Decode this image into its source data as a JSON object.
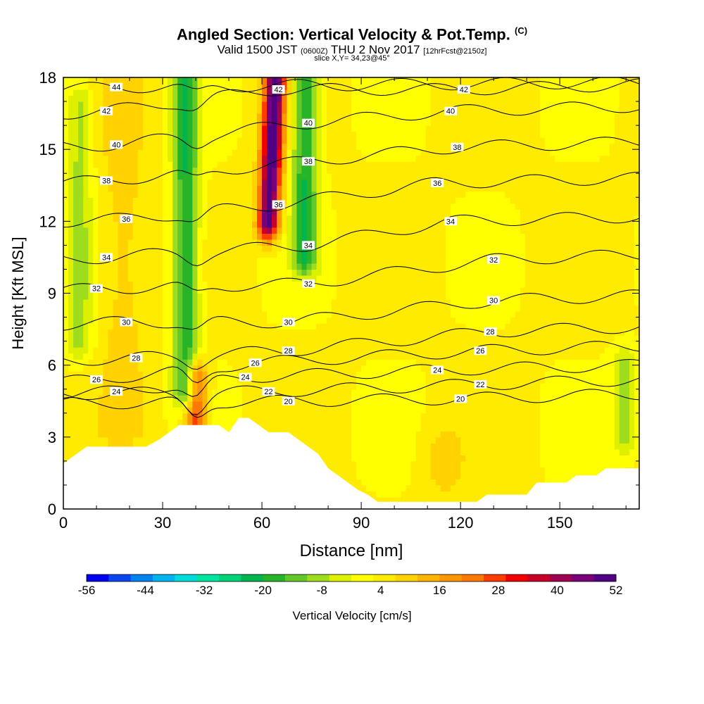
{
  "header": {
    "title_main": "Angled Section: Vertical Velocity & Pot.Temp.",
    "title_unit": "(C)",
    "valid_main": "Valid 1500 JST",
    "valid_utc": "(0600Z)",
    "valid_date": "THU 2 Nov 2017",
    "valid_run": "[12hrFcst@2150z]",
    "slice": "slice X,Y= 34,23@45°"
  },
  "chart_data": {
    "type": "heatmap",
    "xlabel": "Distance [nm]",
    "ylabel": "Height [Kft MSL]",
    "xlim": [
      0,
      174
    ],
    "ylim": [
      0,
      18
    ],
    "x_ticks": [
      0,
      30,
      60,
      90,
      120,
      150
    ],
    "y_ticks": [
      0,
      3,
      6,
      9,
      12,
      15,
      18
    ],
    "colorbar": {
      "label": "Vertical Velocity [cm/s]",
      "tick_labels": [
        "-56",
        "-44",
        "-32",
        "-20",
        "-8",
        "4",
        "16",
        "28",
        "40",
        "52"
      ],
      "colors": [
        "#0000f0",
        "#0a46f0",
        "#0082f0",
        "#00b4f0",
        "#00dcdc",
        "#00e6a0",
        "#00d278",
        "#00b450",
        "#28b428",
        "#64c828",
        "#a0dc1e",
        "#dcf000",
        "#ffff00",
        "#ffeb00",
        "#ffd200",
        "#ffb400",
        "#ff9600",
        "#ff7800",
        "#ff3c00",
        "#f00000",
        "#c80028",
        "#a00050",
        "#780078",
        "#500082"
      ]
    },
    "theta_contours": [
      {
        "value": 20,
        "label_points": [
          [
            68,
            4.5
          ],
          [
            120,
            4.6
          ]
        ]
      },
      {
        "value": 22,
        "label_points": [
          [
            62,
            4.9
          ],
          [
            126,
            5.2
          ]
        ]
      },
      {
        "value": 24,
        "label_points": [
          [
            16,
            4.9
          ],
          [
            55,
            5.5
          ],
          [
            113,
            5.8
          ]
        ]
      },
      {
        "value": 26,
        "label_points": [
          [
            10,
            5.4
          ],
          [
            58,
            6.1
          ],
          [
            126,
            6.6
          ]
        ]
      },
      {
        "value": 28,
        "label_points": [
          [
            22,
            6.3
          ],
          [
            68,
            6.6
          ],
          [
            129,
            7.4
          ]
        ]
      },
      {
        "value": 30,
        "label_points": [
          [
            19,
            7.8
          ],
          [
            68,
            7.8
          ],
          [
            130,
            8.7
          ]
        ]
      },
      {
        "value": 32,
        "label_points": [
          [
            10,
            9.2
          ],
          [
            74,
            9.4
          ],
          [
            130,
            10.4
          ]
        ]
      },
      {
        "value": 34,
        "label_points": [
          [
            13,
            10.5
          ],
          [
            74,
            11.0
          ],
          [
            117,
            12.0
          ]
        ]
      },
      {
        "value": 36,
        "label_points": [
          [
            19,
            12.1
          ],
          [
            65,
            12.7
          ],
          [
            113,
            13.6
          ]
        ]
      },
      {
        "value": 38,
        "label_points": [
          [
            13,
            13.7
          ],
          [
            74,
            14.5
          ],
          [
            119,
            15.1
          ]
        ]
      },
      {
        "value": 40,
        "label_points": [
          [
            16,
            15.2
          ],
          [
            74,
            16.1
          ],
          [
            117,
            16.6
          ]
        ]
      },
      {
        "value": 42,
        "label_points": [
          [
            13,
            16.6
          ],
          [
            65,
            17.5
          ],
          [
            121,
            17.5
          ]
        ]
      },
      {
        "value": 44,
        "label_points": [
          [
            16,
            17.6
          ]
        ]
      }
    ],
    "terrain_kft": [
      [
        0,
        1.9
      ],
      [
        3,
        2.2
      ],
      [
        7,
        2.6
      ],
      [
        12,
        2.6
      ],
      [
        16,
        2.6
      ],
      [
        19,
        2.6
      ],
      [
        22,
        2.6
      ],
      [
        25,
        2.6
      ],
      [
        29,
        2.9
      ],
      [
        32,
        3.2
      ],
      [
        35,
        3.5
      ],
      [
        38,
        3.5
      ],
      [
        41,
        3.5
      ],
      [
        44,
        3.5
      ],
      [
        47,
        3.5
      ],
      [
        50,
        3.2
      ],
      [
        53,
        3.8
      ],
      [
        56,
        3.8
      ],
      [
        59,
        3.5
      ],
      [
        62,
        3.2
      ],
      [
        65,
        3.2
      ],
      [
        68,
        3.2
      ],
      [
        71,
        2.9
      ],
      [
        74,
        2.6
      ],
      [
        77,
        2.3
      ],
      [
        80,
        1.7
      ],
      [
        83,
        1.4
      ],
      [
        86,
        1.1
      ],
      [
        89,
        0.8
      ],
      [
        92,
        0.6
      ],
      [
        95,
        0.3
      ],
      [
        98,
        0.3
      ],
      [
        101,
        0.3
      ],
      [
        104,
        0.3
      ],
      [
        107,
        0.3
      ],
      [
        110,
        0.3
      ],
      [
        113,
        0.3
      ],
      [
        116,
        0.3
      ],
      [
        119,
        0.3
      ],
      [
        122,
        0.3
      ],
      [
        125,
        0.3
      ],
      [
        128,
        0.6
      ],
      [
        131,
        0.6
      ],
      [
        134,
        0.6
      ],
      [
        137,
        0.6
      ],
      [
        140,
        0.6
      ],
      [
        143,
        1.1
      ],
      [
        146,
        1.1
      ],
      [
        149,
        1.1
      ],
      [
        152,
        1.1
      ],
      [
        155,
        1.4
      ],
      [
        158,
        1.4
      ],
      [
        161,
        1.4
      ],
      [
        164,
        1.7
      ],
      [
        167,
        1.7
      ],
      [
        170,
        1.7
      ],
      [
        174,
        1.7
      ]
    ],
    "velocity_features": [
      {
        "kind": "updraft",
        "x": 63,
        "y_from": 12,
        "y_to": 18,
        "peak_cms": 52
      },
      {
        "kind": "updraft",
        "x": 40,
        "y_from": 3.5,
        "y_to": 5.5,
        "peak_cms": 30
      },
      {
        "kind": "downdraft",
        "x": 37,
        "y_from": 5,
        "y_to": 18,
        "peak_cms": -20
      },
      {
        "kind": "downdraft",
        "x": 73,
        "y_from": 10.5,
        "y_to": 18,
        "peak_cms": -20
      },
      {
        "kind": "downdraft",
        "x": 5,
        "y_from": 7,
        "y_to": 17,
        "peak_cms": -8
      },
      {
        "kind": "downdraft",
        "x": 170,
        "y_from": 3,
        "y_to": 6,
        "peak_cms": -8
      }
    ]
  }
}
